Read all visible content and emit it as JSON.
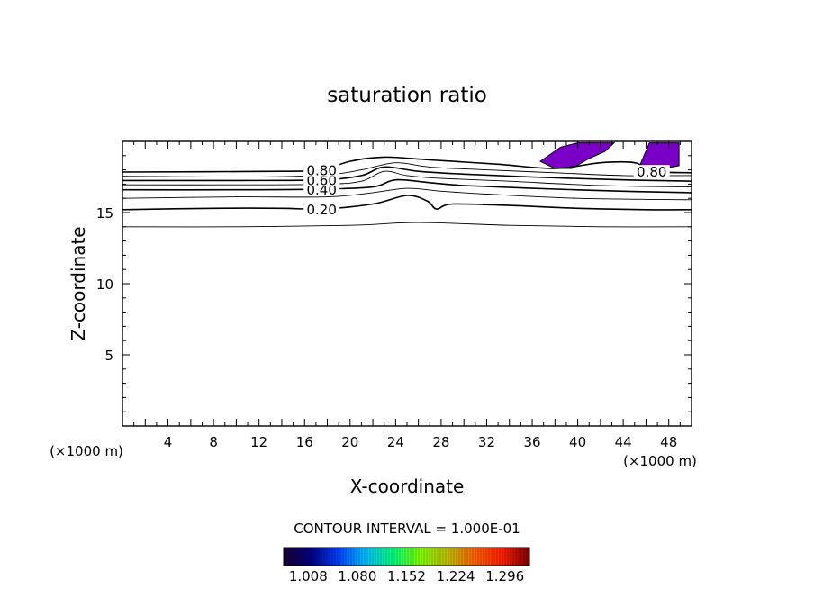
{
  "chart_data": {
    "type": "contour",
    "title": "saturation ratio",
    "xlabel": "X-coordinate",
    "ylabel": "Z-coordinate",
    "x_unit_label": "(×1000 m)",
    "y_unit_label": "(×1000 m)",
    "xlim": [
      0,
      50
    ],
    "ylim": [
      0,
      20
    ],
    "x_ticks": [
      4,
      8,
      12,
      16,
      20,
      24,
      28,
      32,
      36,
      40,
      44,
      48
    ],
    "y_ticks": [
      5,
      10,
      15
    ],
    "contour_interval_label": "CONTOUR INTERVAL = 1.000E-01",
    "contour_labels": [
      {
        "text": "0.20",
        "x": 17.5,
        "level": 0.2
      },
      {
        "text": "0.40",
        "x": 17.5,
        "level": 0.4
      },
      {
        "text": "0.60",
        "x": 17.5,
        "level": 0.6
      },
      {
        "text": "0.80",
        "x": 17.5,
        "level": 0.8
      },
      {
        "text": "0.80",
        "x": 46.5,
        "level": 0.8
      }
    ],
    "contours": [
      {
        "level": 0.1,
        "pts": [
          [
            0,
            14.0
          ],
          [
            10,
            14.0
          ],
          [
            20,
            14.1
          ],
          [
            26,
            14.3
          ],
          [
            34,
            14.1
          ],
          [
            42,
            14.0
          ],
          [
            50,
            14.0
          ]
        ]
      },
      {
        "level": 0.2,
        "pts": [
          [
            0,
            15.2
          ],
          [
            8,
            15.3
          ],
          [
            14,
            15.3
          ],
          [
            17.5,
            15.25
          ],
          [
            22,
            15.6
          ],
          [
            25,
            16.2
          ],
          [
            26.8,
            15.8
          ],
          [
            27.6,
            15.25
          ],
          [
            29,
            15.6
          ],
          [
            34,
            15.5
          ],
          [
            40,
            15.3
          ],
          [
            46,
            15.2
          ],
          [
            50,
            15.2
          ]
        ]
      },
      {
        "level": 0.3,
        "pts": [
          [
            0,
            16.0
          ],
          [
            10,
            16.1
          ],
          [
            18,
            16.1
          ],
          [
            22,
            16.4
          ],
          [
            25,
            16.7
          ],
          [
            28,
            16.5
          ],
          [
            32,
            16.3
          ],
          [
            40,
            16.0
          ],
          [
            50,
            15.9
          ]
        ]
      },
      {
        "level": 0.4,
        "pts": [
          [
            0,
            16.6
          ],
          [
            10,
            16.6
          ],
          [
            17.5,
            16.65
          ],
          [
            22,
            16.8
          ],
          [
            24,
            17.3
          ],
          [
            27,
            17.1
          ],
          [
            30,
            16.9
          ],
          [
            36,
            16.7
          ],
          [
            44,
            16.5
          ],
          [
            50,
            16.4
          ]
        ]
      },
      {
        "level": 0.5,
        "pts": [
          [
            0,
            16.95
          ],
          [
            10,
            16.95
          ],
          [
            18,
            17.0
          ],
          [
            21,
            17.2
          ],
          [
            23,
            17.9
          ],
          [
            25,
            17.6
          ],
          [
            28,
            17.4
          ],
          [
            34,
            17.2
          ],
          [
            42,
            16.9
          ],
          [
            50,
            16.8
          ]
        ]
      },
      {
        "level": 0.6,
        "pts": [
          [
            0,
            17.25
          ],
          [
            10,
            17.25
          ],
          [
            17.5,
            17.3
          ],
          [
            21,
            17.6
          ],
          [
            23,
            18.2
          ],
          [
            26,
            17.9
          ],
          [
            30,
            17.7
          ],
          [
            36,
            17.5
          ],
          [
            44,
            17.3
          ],
          [
            50,
            17.2
          ]
        ]
      },
      {
        "level": 0.7,
        "pts": [
          [
            0,
            17.55
          ],
          [
            12,
            17.5
          ],
          [
            18,
            17.65
          ],
          [
            21,
            18.0
          ],
          [
            24,
            18.5
          ],
          [
            27,
            18.2
          ],
          [
            32,
            18.0
          ],
          [
            38,
            17.8
          ],
          [
            44,
            17.6
          ],
          [
            50,
            17.6
          ]
        ]
      },
      {
        "level": 0.8,
        "pts": [
          [
            0,
            17.85
          ],
          [
            14,
            17.9
          ],
          [
            17.5,
            18.0
          ],
          [
            20,
            18.6
          ],
          [
            23,
            18.9
          ],
          [
            27,
            18.7
          ],
          [
            33,
            18.4
          ],
          [
            38,
            18.1
          ],
          [
            42,
            18.5
          ],
          [
            45,
            18.5
          ],
          [
            46.5,
            17.9
          ],
          [
            50,
            17.8
          ]
        ]
      }
    ],
    "filled_regions": [
      {
        "name": "supersaturated",
        "color": "#7a00c8",
        "pts": [
          [
            36.7,
            18.6
          ],
          [
            38.5,
            19.6
          ],
          [
            40,
            19.9
          ],
          [
            43.2,
            19.9
          ],
          [
            42.4,
            19.3
          ],
          [
            41,
            18.8
          ],
          [
            39.5,
            18.1
          ],
          [
            38,
            18.1
          ]
        ]
      },
      {
        "name": "supersaturated",
        "color": "#7a00c8",
        "pts": [
          [
            45.5,
            18.4
          ],
          [
            46.3,
            19.9
          ],
          [
            48.9,
            19.9
          ],
          [
            48.9,
            18.3
          ],
          [
            47.6,
            18.1
          ],
          [
            46.2,
            18.0
          ]
        ]
      }
    ],
    "colorbar": {
      "tick_labels": [
        "1.008",
        "1.080",
        "1.152",
        "1.224",
        "1.296"
      ],
      "min": 0.972,
      "max": 1.332,
      "colors": [
        "#1a0033",
        "#000080",
        "#0040ff",
        "#00c0ff",
        "#00ff80",
        "#80ff00",
        "#c0c000",
        "#ff6000",
        "#ff2000",
        "#800000"
      ]
    }
  }
}
